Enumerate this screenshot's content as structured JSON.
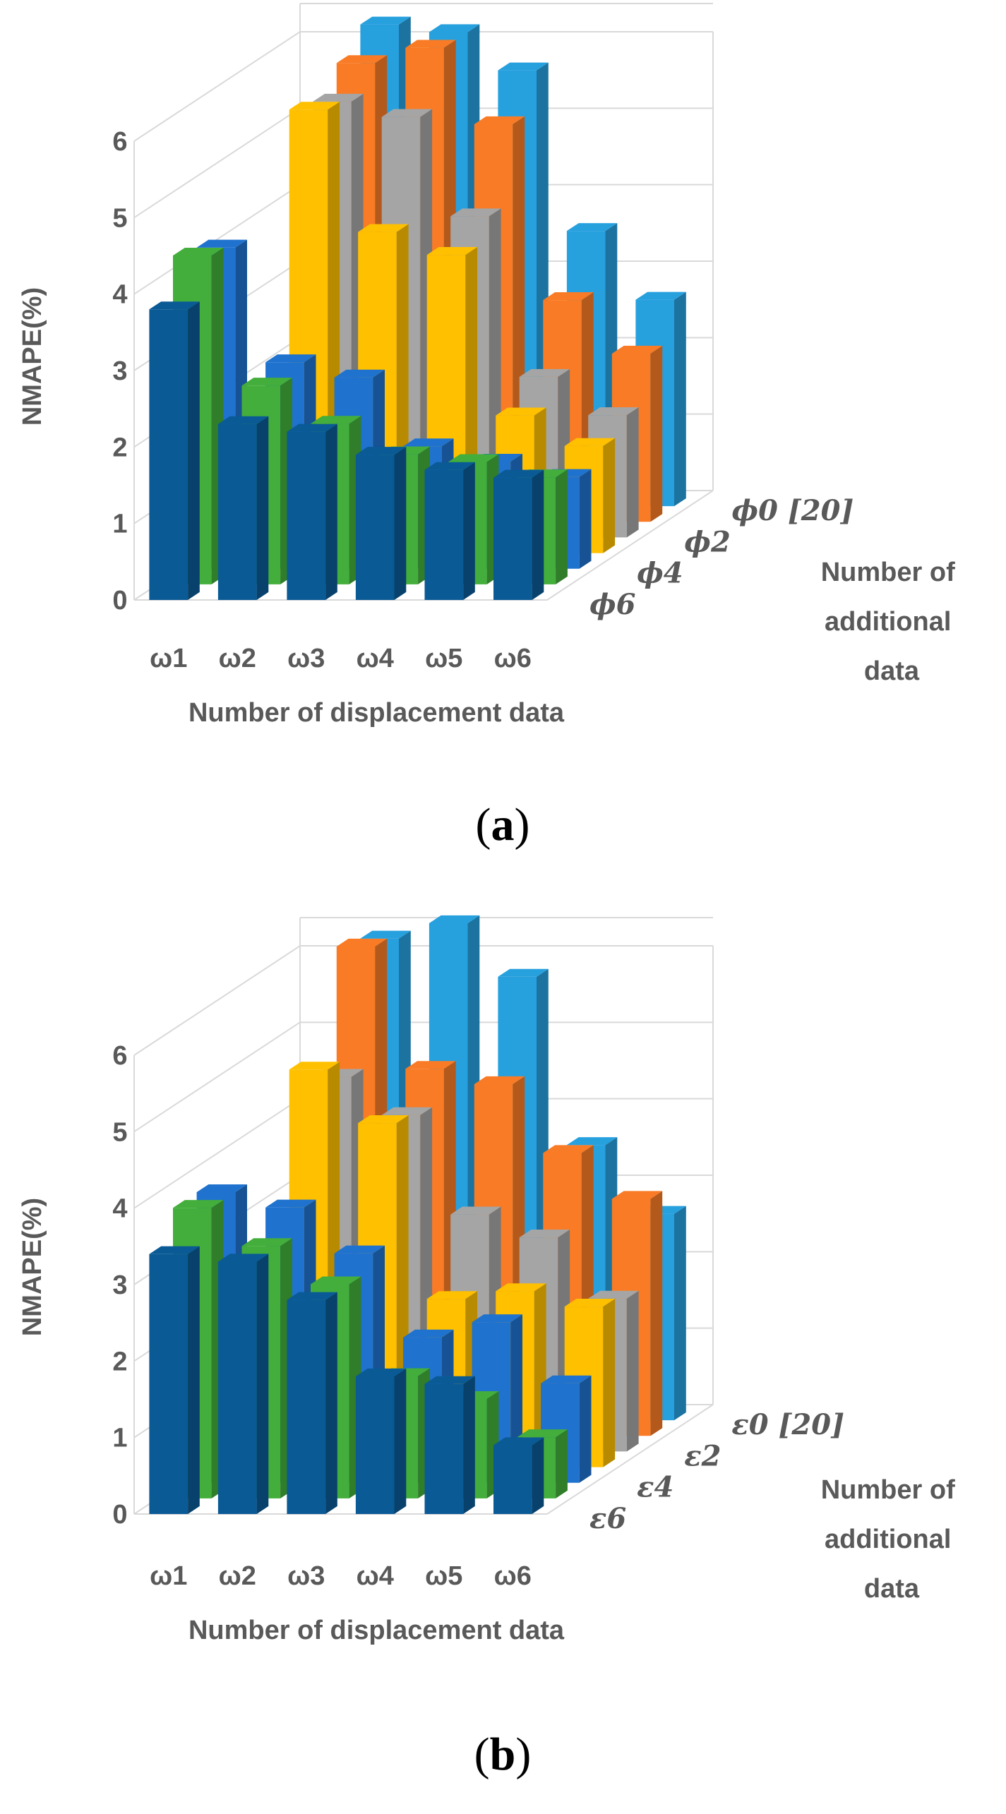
{
  "chart_data": [
    {
      "type": "bar",
      "subtype": "3d-grouped-bar",
      "caption_letter": "a",
      "ylabel": "NMAPE(%)",
      "xlabel": "Number of displacement data",
      "depth_label": [
        "Number of",
        "additional",
        "data"
      ],
      "ylim": [
        0,
        6
      ],
      "yticks": [
        "0",
        "1",
        "2",
        "3",
        "4",
        "5",
        "6"
      ],
      "categories": [
        "ω1",
        "ω2",
        "ω3",
        "ω4",
        "ω5",
        "ω6"
      ],
      "series": [
        {
          "name": "ϕ0 [20]",
          "color": "#27A0DE",
          "values": [
            null,
            6.3,
            6.2,
            5.7,
            3.6,
            2.7
          ]
        },
        {
          "name": "",
          "color": "#F97B25",
          "values": [
            null,
            6.0,
            6.2,
            5.2,
            2.9,
            2.2
          ]
        },
        {
          "name": "ϕ2",
          "color": "#A5A5A5",
          "values": [
            null,
            5.7,
            5.5,
            4.2,
            2.1,
            1.6
          ]
        },
        {
          "name": "",
          "color": "#FFC000",
          "values": [
            null,
            5.8,
            4.2,
            3.9,
            1.8,
            1.4
          ]
        },
        {
          "name": "ϕ4",
          "color": "#1F72CE",
          "values": [
            4.2,
            2.7,
            2.5,
            1.6,
            1.4,
            1.2
          ]
        },
        {
          "name": "",
          "color": "#43AE3B",
          "values": [
            4.3,
            2.6,
            2.1,
            1.7,
            1.6,
            1.4
          ]
        },
        {
          "name": "ϕ6",
          "color": "#0A5A96",
          "values": [
            3.8,
            2.3,
            2.2,
            1.9,
            1.7,
            1.6
          ]
        }
      ]
    },
    {
      "type": "bar",
      "subtype": "3d-grouped-bar",
      "caption_letter": "b",
      "ylabel": "NMAPE(%)",
      "xlabel": "Number of displacement data",
      "depth_label": [
        "Number of",
        "additional",
        "data"
      ],
      "ylim": [
        0,
        6
      ],
      "yticks": [
        "0",
        "1",
        "2",
        "3",
        "4",
        "5",
        "6"
      ],
      "categories": [
        "ω1",
        "ω2",
        "ω3",
        "ω4",
        "ω5",
        "ω6"
      ],
      "series": [
        {
          "name": "ε0 [20]",
          "color": "#27A0DE",
          "values": [
            null,
            6.3,
            6.5,
            5.8,
            3.6,
            2.7
          ]
        },
        {
          "name": "",
          "color": "#F97B25",
          "values": [
            null,
            6.4,
            4.8,
            4.6,
            3.7,
            3.1
          ]
        },
        {
          "name": "ε2",
          "color": "#A5A5A5",
          "values": [
            null,
            4.9,
            4.4,
            3.1,
            2.8,
            2.0
          ]
        },
        {
          "name": "",
          "color": "#FFC000",
          "values": [
            null,
            5.2,
            4.5,
            2.2,
            2.3,
            2.1
          ]
        },
        {
          "name": "ε4",
          "color": "#1F72CE",
          "values": [
            3.8,
            3.6,
            3.0,
            1.9,
            2.1,
            1.3
          ]
        },
        {
          "name": "",
          "color": "#43AE3B",
          "values": [
            3.8,
            3.3,
            2.8,
            1.6,
            1.3,
            0.8
          ]
        },
        {
          "name": "ε6",
          "color": "#0A5A96",
          "values": [
            3.4,
            3.3,
            2.8,
            1.8,
            1.7,
            0.9
          ]
        }
      ]
    }
  ]
}
